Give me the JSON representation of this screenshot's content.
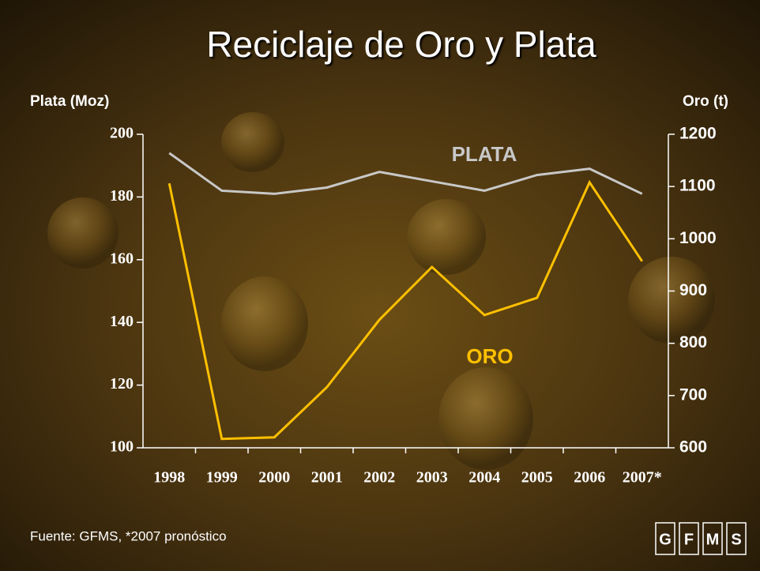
{
  "chart_data": {
    "type": "line",
    "title": "Reciclaje de Oro y Plata",
    "y_label": "Plata (Moz)",
    "y2_label": "Oro (t)",
    "categories": [
      "1998",
      "1999",
      "2000",
      "2001",
      "2002",
      "2003",
      "2004",
      "2005",
      "2006",
      "2007*"
    ],
    "series": [
      {
        "name": "PLATA",
        "color": "#c8c8c8",
        "values": [
          194,
          182,
          181,
          183,
          188,
          185,
          182,
          187,
          189,
          181
        ]
      },
      {
        "name": "ORO",
        "color": "#ffc000",
        "axis": "y2",
        "values": [
          1106,
          617,
          620,
          716,
          845,
          946,
          854,
          887,
          1108,
          957
        ]
      }
    ],
    "ylim": [
      100,
      200
    ],
    "yticks": [
      100,
      120,
      140,
      160,
      180,
      200
    ],
    "y2lim": [
      600,
      1200
    ],
    "y2ticks": [
      600,
      700,
      800,
      900,
      1000,
      1100,
      1200
    ],
    "grid": false,
    "source": "Fuente: GFMS, *2007 pronóstico"
  },
  "logo": [
    "G",
    "F",
    "M",
    "S"
  ]
}
